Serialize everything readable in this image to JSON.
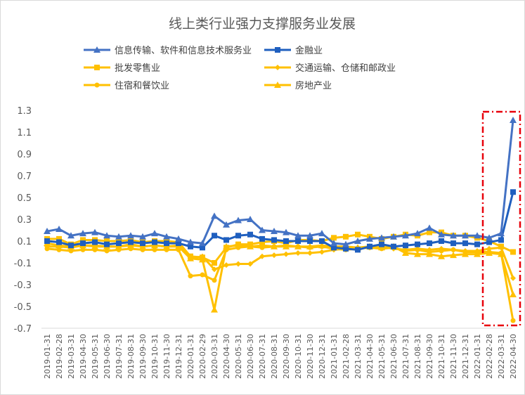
{
  "chart_data": {
    "type": "line",
    "title": "线上类行业强力支撑服务业发展",
    "xlabel": "",
    "ylabel": "",
    "ylim": [
      -0.7,
      1.3
    ],
    "yticks": [
      "1.3",
      "1.1",
      "0.9",
      "0.7",
      "0.5",
      "0.3",
      "0.1",
      "-0.1",
      "-0.3",
      "-0.5",
      "-0.7"
    ],
    "grid": false,
    "legend_position": "top",
    "x": [
      "2019-01-31",
      "2019-02-28",
      "2019-03-31",
      "2019-04-30",
      "2019-05-31",
      "2019-06-30",
      "2019-07-31",
      "2019-08-31",
      "2019-09-30",
      "2019-10-31",
      "2019-11-30",
      "2019-12-31",
      "2020-01-31",
      "2020-02-29",
      "2020-03-31",
      "2020-04-30",
      "2020-05-31",
      "2020-06-30",
      "2020-07-31",
      "2020-08-31",
      "2020-09-30",
      "2020-10-31",
      "2020-11-30",
      "2020-12-31",
      "2021-01-31",
      "2021-02-28",
      "2021-03-31",
      "2021-04-30",
      "2021-05-31",
      "2021-06-30",
      "2021-07-31",
      "2021-08-31",
      "2021-09-30",
      "2021-10-31",
      "2021-11-30",
      "2021-12-31",
      "2022-01-31",
      "2022-02-28",
      "2022-03-31",
      "2022-04-30"
    ],
    "series": [
      {
        "name": "信息传输、软件和信息技术服务业",
        "color": "#4472c4",
        "marker": "triangle",
        "values": [
          0.19,
          0.21,
          0.15,
          0.17,
          0.18,
          0.15,
          0.14,
          0.15,
          0.14,
          0.17,
          0.14,
          0.12,
          0.09,
          0.08,
          0.33,
          0.25,
          0.29,
          0.3,
          0.2,
          0.19,
          0.18,
          0.15,
          0.15,
          0.17,
          0.08,
          0.07,
          0.1,
          0.12,
          0.13,
          0.14,
          0.15,
          0.17,
          0.22,
          0.16,
          0.15,
          0.15,
          0.15,
          0.13,
          0.17,
          1.21
        ]
      },
      {
        "name": "金融业",
        "color": "#1f5fbf",
        "marker": "square",
        "values": [
          0.1,
          0.09,
          0.06,
          0.08,
          0.09,
          0.07,
          0.08,
          0.09,
          0.08,
          0.09,
          0.08,
          0.08,
          0.05,
          0.04,
          0.15,
          0.11,
          0.15,
          0.16,
          0.12,
          0.11,
          0.1,
          0.1,
          0.1,
          0.1,
          0.04,
          0.03,
          0.02,
          0.05,
          0.07,
          0.05,
          0.06,
          0.07,
          0.08,
          0.1,
          0.08,
          0.08,
          0.07,
          0.09,
          0.11,
          0.55
        ]
      },
      {
        "name": "批发零售业",
        "color": "#ffc000",
        "marker": "square",
        "values": [
          0.12,
          0.12,
          0.07,
          0.11,
          0.11,
          0.1,
          0.1,
          0.11,
          0.09,
          0.1,
          0.1,
          0.09,
          -0.04,
          -0.05,
          -0.1,
          0.04,
          0.07,
          0.07,
          0.09,
          0.1,
          0.08,
          0.11,
          0.11,
          0.1,
          0.13,
          0.14,
          0.16,
          0.14,
          0.12,
          0.14,
          0.16,
          0.15,
          0.18,
          0.18,
          0.15,
          0.15,
          0.13,
          0.1,
          0.05,
          0.0
        ]
      },
      {
        "name": "交通运输、仓储和邮政业",
        "color": "#ffc000",
        "marker": "diamond",
        "values": [
          0.05,
          0.05,
          0.04,
          0.06,
          0.06,
          0.05,
          0.05,
          0.07,
          0.05,
          0.06,
          0.05,
          0.06,
          -0.06,
          -0.04,
          -0.16,
          -0.12,
          -0.11,
          -0.11,
          -0.04,
          -0.03,
          -0.02,
          -0.01,
          -0.01,
          0.0,
          0.02,
          0.03,
          0.04,
          0.04,
          0.05,
          0.03,
          0.02,
          0.03,
          0.02,
          0.03,
          0.02,
          0.01,
          0.01,
          0.03,
          0.04,
          -0.24
        ]
      },
      {
        "name": "住宿和餐饮业",
        "color": "#ffc000",
        "marker": "circle",
        "values": [
          0.03,
          0.02,
          0.01,
          0.02,
          0.02,
          0.01,
          0.02,
          0.03,
          0.02,
          0.02,
          0.02,
          0.02,
          -0.22,
          -0.21,
          -0.26,
          0.02,
          0.04,
          0.05,
          0.04,
          0.05,
          0.06,
          0.05,
          0.04,
          0.05,
          0.03,
          0.02,
          0.03,
          0.04,
          0.03,
          0.04,
          0.01,
          0.02,
          0.0,
          0.01,
          0.02,
          0.0,
          0.0,
          0.0,
          -0.01,
          -0.63
        ]
      },
      {
        "name": "房地产业",
        "color": "#ffc000",
        "marker": "triangle",
        "values": [
          0.08,
          0.06,
          0.05,
          0.06,
          0.05,
          0.05,
          0.05,
          0.06,
          0.05,
          0.06,
          0.05,
          0.05,
          -0.06,
          -0.07,
          -0.53,
          0.05,
          0.06,
          0.05,
          0.06,
          0.05,
          0.05,
          0.05,
          0.05,
          0.06,
          0.05,
          0.05,
          0.04,
          0.05,
          0.04,
          0.05,
          -0.01,
          -0.02,
          -0.02,
          -0.04,
          -0.03,
          -0.02,
          -0.02,
          -0.01,
          -0.02,
          -0.39
        ]
      }
    ]
  }
}
